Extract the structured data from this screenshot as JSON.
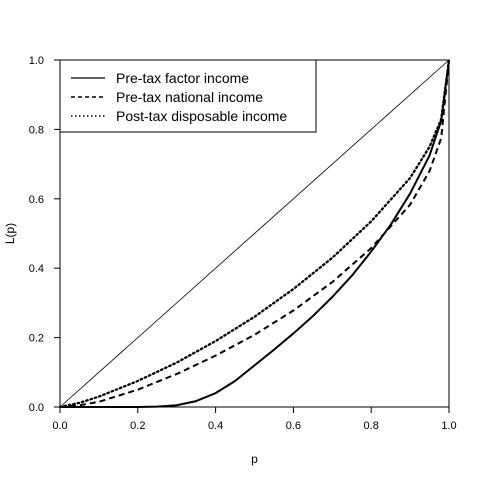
{
  "chart_data": {
    "type": "line",
    "title": "",
    "xlabel": "p",
    "ylabel": "L(p)",
    "xlim": [
      0,
      1
    ],
    "ylim": [
      0,
      1
    ],
    "x_ticks": [
      "0.0",
      "0.2",
      "0.4",
      "0.6",
      "0.8",
      "1.0"
    ],
    "y_ticks": [
      "0.0",
      "0.2",
      "0.4",
      "0.6",
      "0.8",
      "1.0"
    ],
    "grid": false,
    "legend_position": "top-left",
    "reference_line": {
      "x": [
        0,
        1
      ],
      "y": [
        0,
        1
      ],
      "style": "solid-thin"
    },
    "series": [
      {
        "name": "Pre-tax factor income",
        "style": "solid",
        "x": [
          0,
          0.1,
          0.2,
          0.25,
          0.3,
          0.35,
          0.4,
          0.45,
          0.5,
          0.55,
          0.6,
          0.65,
          0.7,
          0.75,
          0.8,
          0.85,
          0.9,
          0.95,
          0.98,
          1.0
        ],
        "y": [
          0,
          0,
          0,
          0.001,
          0.005,
          0.017,
          0.04,
          0.075,
          0.12,
          0.165,
          0.212,
          0.262,
          0.317,
          0.378,
          0.448,
          0.525,
          0.615,
          0.725,
          0.825,
          1.0
        ]
      },
      {
        "name": "Pre-tax national income",
        "style": "dashed",
        "x": [
          0,
          0.05,
          0.1,
          0.2,
          0.3,
          0.4,
          0.5,
          0.6,
          0.7,
          0.8,
          0.9,
          0.95,
          0.98,
          1.0
        ],
        "y": [
          0,
          0.005,
          0.015,
          0.05,
          0.095,
          0.148,
          0.208,
          0.278,
          0.36,
          0.458,
          0.583,
          0.68,
          0.775,
          1.0
        ]
      },
      {
        "name": "Post-tax disposable income",
        "style": "dotted",
        "x": [
          0,
          0.05,
          0.1,
          0.2,
          0.3,
          0.4,
          0.5,
          0.6,
          0.7,
          0.8,
          0.9,
          0.95,
          0.98,
          1.0
        ],
        "y": [
          0,
          0.012,
          0.03,
          0.075,
          0.128,
          0.19,
          0.26,
          0.34,
          0.43,
          0.535,
          0.66,
          0.75,
          0.83,
          1.0
        ]
      }
    ]
  }
}
